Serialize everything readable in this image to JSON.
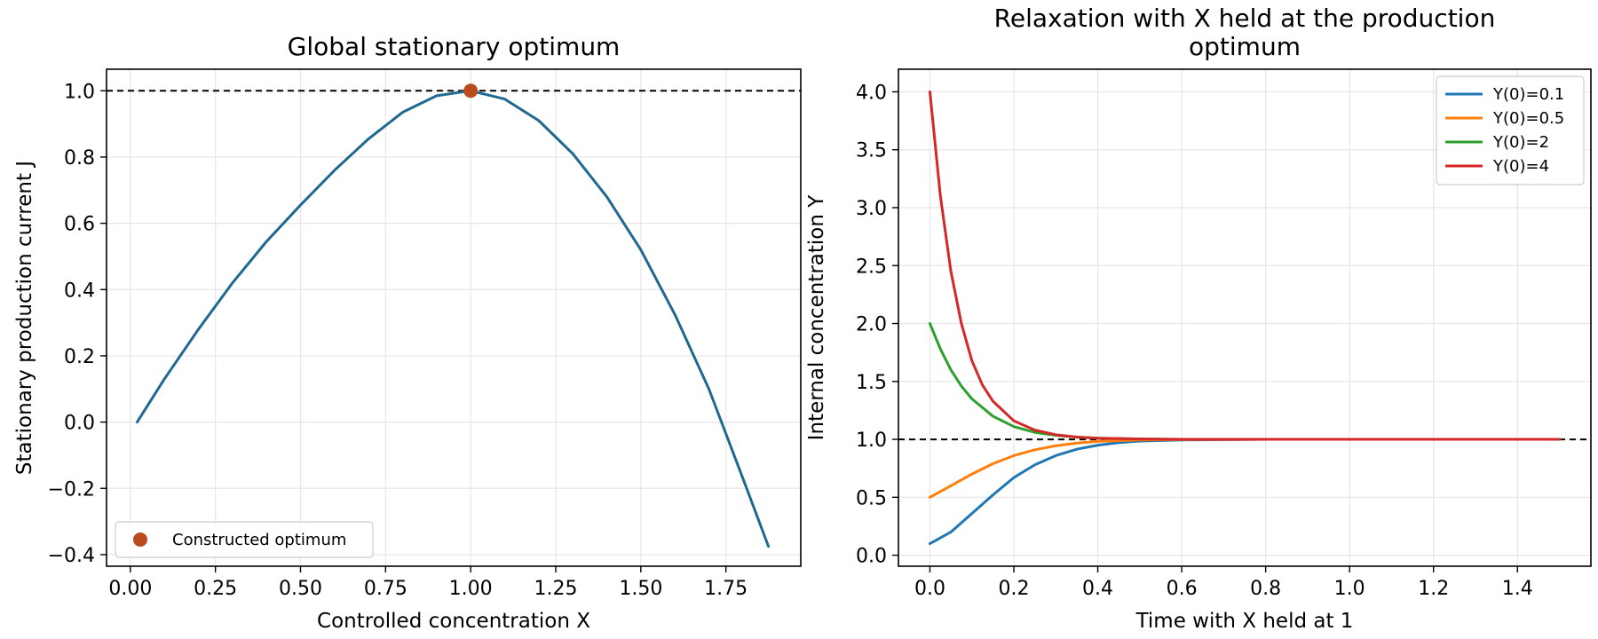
{
  "chart_data": [
    {
      "type": "line",
      "title": "Global stationary optimum",
      "xlabel": "Controlled concentration X",
      "ylabel": "Stationary production current J",
      "xlim": [
        -0.07,
        1.97
      ],
      "ylim": [
        -0.435,
        1.065
      ],
      "xticks": [
        0.0,
        0.25,
        0.5,
        0.75,
        1.0,
        1.25,
        1.5,
        1.75
      ],
      "xtick_labels": [
        "0.00",
        "0.25",
        "0.50",
        "0.75",
        "1.00",
        "1.25",
        "1.50",
        "1.75"
      ],
      "yticks": [
        -0.4,
        -0.2,
        0.0,
        0.2,
        0.4,
        0.6,
        0.8,
        1.0
      ],
      "ytick_labels": [
        "−0.4",
        "−0.2",
        "0.0",
        "0.2",
        "0.4",
        "0.6",
        "0.8",
        "1.0"
      ],
      "grid": true,
      "legend_position": "lower-left",
      "reference_line": {
        "orientation": "horizontal",
        "y": 1.0,
        "style": "dashed",
        "color": "#000000"
      },
      "series": [
        {
          "color": "#1f6891",
          "points": [
            [
              0.02,
              0.0
            ],
            [
              0.1,
              0.13
            ],
            [
              0.2,
              0.28
            ],
            [
              0.3,
              0.42
            ],
            [
              0.4,
              0.545
            ],
            [
              0.5,
              0.655
            ],
            [
              0.6,
              0.76
            ],
            [
              0.7,
              0.855
            ],
            [
              0.8,
              0.935
            ],
            [
              0.9,
              0.985
            ],
            [
              1.0,
              1.0
            ],
            [
              1.1,
              0.975
            ],
            [
              1.2,
              0.91
            ],
            [
              1.3,
              0.81
            ],
            [
              1.4,
              0.68
            ],
            [
              1.5,
              0.52
            ],
            [
              1.6,
              0.325
            ],
            [
              1.7,
              0.1
            ],
            [
              1.8,
              -0.17
            ],
            [
              1.875,
              -0.375
            ]
          ]
        }
      ],
      "markers": [
        {
          "name": "Constructed optimum",
          "x": 1.0,
          "y": 1.0,
          "color": "#b84a1e"
        }
      ]
    },
    {
      "type": "line",
      "title": "Relaxation with X held at the production optimum",
      "title_lines": [
        "Relaxation with X held at the production",
        "optimum"
      ],
      "xlabel": "Time with X held at 1",
      "ylabel": "Internal concentration Y",
      "xlim": [
        -0.075,
        1.575
      ],
      "ylim": [
        -0.095,
        4.195
      ],
      "xticks": [
        0.0,
        0.2,
        0.4,
        0.6,
        0.8,
        1.0,
        1.2,
        1.4
      ],
      "xtick_labels": [
        "0.0",
        "0.2",
        "0.4",
        "0.6",
        "0.8",
        "1.0",
        "1.2",
        "1.4"
      ],
      "yticks": [
        0.0,
        0.5,
        1.0,
        1.5,
        2.0,
        2.5,
        3.0,
        3.5,
        4.0
      ],
      "ytick_labels": [
        "0.0",
        "0.5",
        "1.0",
        "1.5",
        "2.0",
        "2.5",
        "3.0",
        "3.5",
        "4.0"
      ],
      "grid": true,
      "legend_position": "upper-right",
      "reference_line": {
        "orientation": "horizontal",
        "y": 1.0,
        "style": "dashed",
        "color": "#000000"
      },
      "series": [
        {
          "name": "Y(0)=0.1",
          "color": "#1f77b4",
          "points": [
            [
              0.0,
              0.1
            ],
            [
              0.05,
              0.2
            ],
            [
              0.1,
              0.36
            ],
            [
              0.15,
              0.52
            ],
            [
              0.2,
              0.67
            ],
            [
              0.25,
              0.78
            ],
            [
              0.3,
              0.86
            ],
            [
              0.35,
              0.915
            ],
            [
              0.4,
              0.95
            ],
            [
              0.45,
              0.972
            ],
            [
              0.5,
              0.985
            ],
            [
              0.6,
              0.995
            ],
            [
              0.8,
              1.0
            ],
            [
              1.0,
              1.0
            ],
            [
              1.2,
              1.0
            ],
            [
              1.5,
              1.0
            ]
          ]
        },
        {
          "name": "Y(0)=0.5",
          "color": "#ff7f0e",
          "points": [
            [
              0.0,
              0.5
            ],
            [
              0.05,
              0.6
            ],
            [
              0.1,
              0.7
            ],
            [
              0.15,
              0.79
            ],
            [
              0.2,
              0.86
            ],
            [
              0.25,
              0.91
            ],
            [
              0.3,
              0.945
            ],
            [
              0.35,
              0.968
            ],
            [
              0.4,
              0.982
            ],
            [
              0.5,
              0.995
            ],
            [
              0.6,
              0.999
            ],
            [
              0.8,
              1.0
            ],
            [
              1.0,
              1.0
            ],
            [
              1.2,
              1.0
            ],
            [
              1.5,
              1.0
            ]
          ]
        },
        {
          "name": "Y(0)=2",
          "color": "#2ca02c",
          "points": [
            [
              0.0,
              2.0
            ],
            [
              0.025,
              1.78
            ],
            [
              0.05,
              1.6
            ],
            [
              0.075,
              1.46
            ],
            [
              0.1,
              1.35
            ],
            [
              0.15,
              1.2
            ],
            [
              0.2,
              1.11
            ],
            [
              0.25,
              1.06
            ],
            [
              0.3,
              1.035
            ],
            [
              0.35,
              1.02
            ],
            [
              0.4,
              1.01
            ],
            [
              0.5,
              1.003
            ],
            [
              0.6,
              1.0
            ],
            [
              1.0,
              1.0
            ],
            [
              1.5,
              1.0
            ]
          ]
        },
        {
          "name": "Y(0)=4",
          "color": "#d62728",
          "points": [
            [
              0.0,
              4.0
            ],
            [
              0.025,
              3.1
            ],
            [
              0.05,
              2.45
            ],
            [
              0.075,
              2.0
            ],
            [
              0.1,
              1.68
            ],
            [
              0.125,
              1.47
            ],
            [
              0.15,
              1.33
            ],
            [
              0.2,
              1.16
            ],
            [
              0.25,
              1.08
            ],
            [
              0.3,
              1.04
            ],
            [
              0.35,
              1.02
            ],
            [
              0.4,
              1.01
            ],
            [
              0.5,
              1.003
            ],
            [
              0.6,
              1.0
            ],
            [
              1.0,
              1.0
            ],
            [
              1.5,
              1.0
            ]
          ]
        }
      ]
    }
  ]
}
